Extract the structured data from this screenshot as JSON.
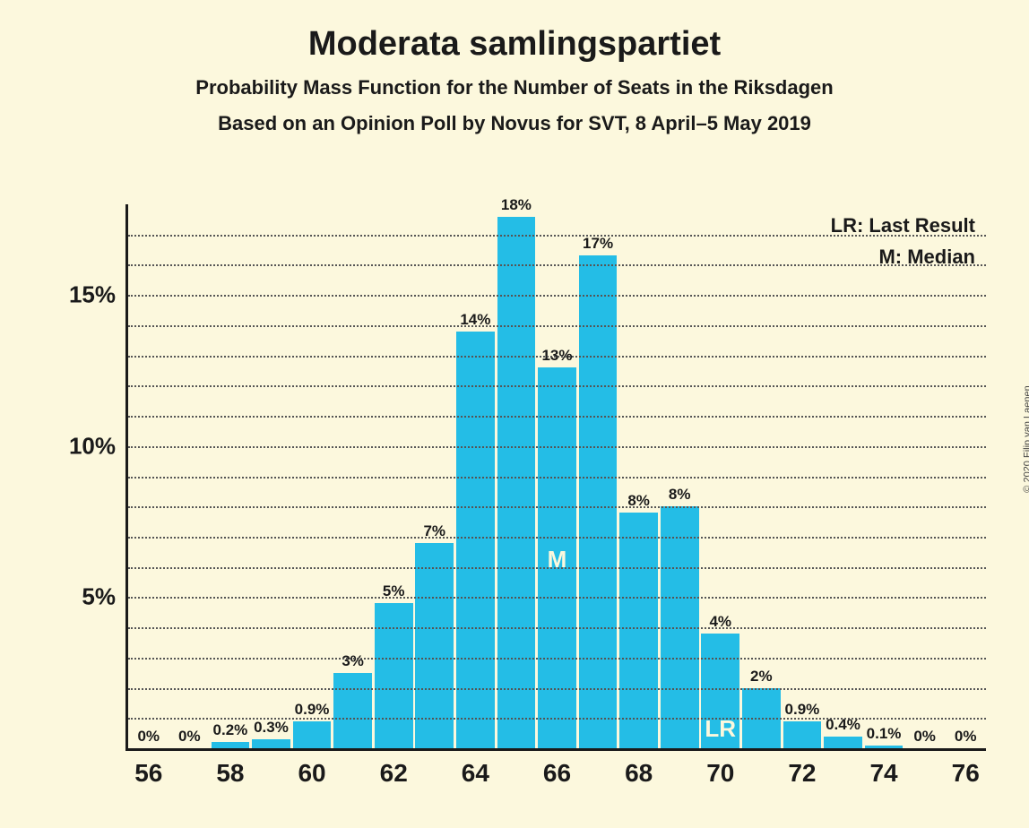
{
  "title": "Moderata samlingspartiet",
  "subtitle1": "Probability Mass Function for the Number of Seats in the Riksdagen",
  "subtitle2": "Based on an Opinion Poll by Novus for SVT, 8 April–5 May 2019",
  "copyright": "© 2020 Filip van Laenen",
  "legend": {
    "lr": "LR: Last Result",
    "m": "M: Median"
  },
  "chart": {
    "type": "bar",
    "background_color": "#fcf8dd",
    "axis_color": "#1a1a1a",
    "grid_color": "#555555",
    "grid_style": "dotted",
    "bar_color": "#24bde6",
    "text_color": "#1a1a1a",
    "marker_text_color": "#fcf8dd",
    "title_fontsize": 38,
    "subtitle_fontsize": 22,
    "ylabel_fontsize": 26,
    "xlabel_fontsize": 28,
    "barlabel_fontsize": 17,
    "legend_fontsize": 22,
    "y": {
      "min": 0,
      "max": 18,
      "major_ticks": [
        5,
        10,
        15
      ],
      "major_labels": [
        "5%",
        "10%",
        "15%"
      ],
      "minor_ticks": [
        1,
        2,
        3,
        4,
        6,
        7,
        8,
        9,
        11,
        12,
        13,
        14,
        16,
        17
      ]
    },
    "x": {
      "min": 56,
      "max": 76,
      "tick_values": [
        56,
        58,
        60,
        62,
        64,
        66,
        68,
        70,
        72,
        74,
        76
      ],
      "tick_labels": [
        "56",
        "58",
        "60",
        "62",
        "64",
        "66",
        "68",
        "70",
        "72",
        "74",
        "76"
      ]
    },
    "bars": [
      {
        "x": 56,
        "value": 0,
        "label": "0%"
      },
      {
        "x": 57,
        "value": 0,
        "label": "0%"
      },
      {
        "x": 58,
        "value": 0.2,
        "label": "0.2%"
      },
      {
        "x": 59,
        "value": 0.3,
        "label": "0.3%"
      },
      {
        "x": 60,
        "value": 0.9,
        "label": "0.9%"
      },
      {
        "x": 61,
        "value": 2.5,
        "label": "3%"
      },
      {
        "x": 62,
        "value": 4.8,
        "label": "5%"
      },
      {
        "x": 63,
        "value": 6.8,
        "label": "7%"
      },
      {
        "x": 64,
        "value": 13.8,
        "label": "14%"
      },
      {
        "x": 65,
        "value": 17.6,
        "label": "18%"
      },
      {
        "x": 66,
        "value": 12.6,
        "label": "13%",
        "marker": "M",
        "marker_pos": 0.46
      },
      {
        "x": 67,
        "value": 16.3,
        "label": "17%"
      },
      {
        "x": 68,
        "value": 7.8,
        "label": "8%"
      },
      {
        "x": 69,
        "value": 8.0,
        "label": "8%"
      },
      {
        "x": 70,
        "value": 3.8,
        "label": "4%",
        "marker": "LR",
        "marker_pos": 0.05
      },
      {
        "x": 71,
        "value": 2.0,
        "label": "2%"
      },
      {
        "x": 72,
        "value": 0.9,
        "label": "0.9%"
      },
      {
        "x": 73,
        "value": 0.4,
        "label": "0.4%"
      },
      {
        "x": 74,
        "value": 0.1,
        "label": "0.1%"
      },
      {
        "x": 75,
        "value": 0,
        "label": "0%"
      },
      {
        "x": 76,
        "value": 0,
        "label": "0%"
      }
    ]
  }
}
